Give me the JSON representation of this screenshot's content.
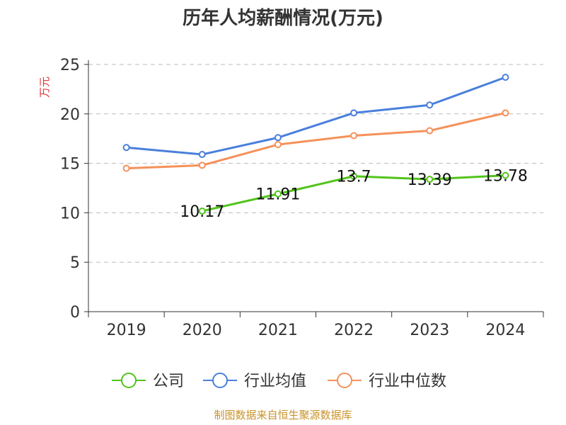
{
  "chart_data": {
    "type": "line",
    "title": "历年人均薪酬情况(万元)",
    "ylabel": "万元",
    "xlabel": "",
    "categories": [
      "2019",
      "2020",
      "2021",
      "2022",
      "2023",
      "2024"
    ],
    "ylim": [
      0,
      25
    ],
    "yticks": [
      "0",
      "5",
      "10",
      "15",
      "20",
      "25"
    ],
    "grid": true,
    "legend_position": "bottom",
    "series": [
      {
        "name": "公司",
        "color": "#52c41a",
        "values": [
          null,
          10.17,
          11.91,
          13.7,
          13.39,
          13.78
        ],
        "labels": [
          null,
          "10.17",
          "11.91",
          "13.7",
          "13.39",
          "13.78"
        ]
      },
      {
        "name": "行业均值",
        "color": "#4a7fdc",
        "values": [
          16.6,
          15.9,
          17.6,
          20.1,
          20.9,
          23.7
        ]
      },
      {
        "name": "行业中位数",
        "color": "#f5915a",
        "values": [
          14.5,
          14.8,
          16.9,
          17.8,
          18.3,
          20.1
        ]
      }
    ]
  },
  "colors": {
    "ylabel": "#e03030",
    "source": "#c8922a",
    "grid": "#bbbbbb",
    "axis": "#333333"
  },
  "source": "制图数据来自恒生聚源数据库"
}
